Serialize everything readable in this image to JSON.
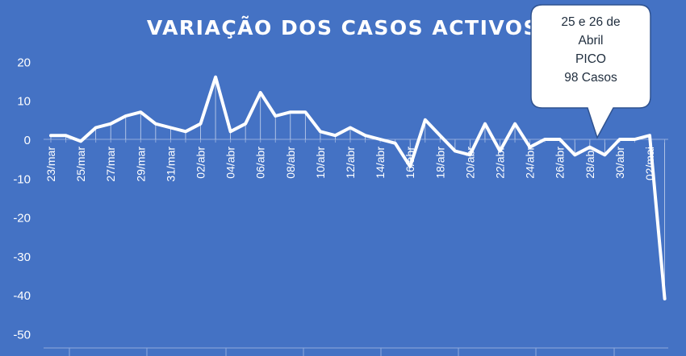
{
  "chart_data": {
    "type": "line",
    "title": "VARIAÇÃO DOS CASOS ACTIVOS",
    "xlabel": "",
    "ylabel": "",
    "ylim": [
      -50,
      20
    ],
    "yticks": [
      20,
      10,
      0,
      -10,
      -20,
      -30,
      -40,
      -50
    ],
    "grid": false,
    "legend": "none",
    "x_tick_labels": [
      "23/mar",
      "25/mar",
      "27/mar",
      "29/mar",
      "31/mar",
      "02/abr",
      "04/abr",
      "06/abr",
      "08/abr",
      "10/abr",
      "12/abr",
      "14/abr",
      "16/abr",
      "18/abr",
      "20/abr",
      "22/abr",
      "24/abr",
      "26/abr",
      "28/abr",
      "30/abr",
      "02/mai"
    ],
    "series": [
      {
        "values": [
          1,
          1,
          -0.5,
          3,
          4,
          6,
          7,
          4,
          3,
          2,
          4,
          16,
          2,
          4,
          12,
          6,
          7,
          7,
          2,
          1,
          3,
          1,
          0,
          -1,
          -7,
          5,
          1,
          -3,
          -4,
          4,
          -3,
          4,
          -2,
          0,
          0,
          -4,
          -2,
          -4,
          0,
          0,
          1,
          -41
        ]
      }
    ],
    "annotation": {
      "lines": [
        "25 e 26 de",
        "Abril",
        "PICO",
        "98 Casos"
      ]
    },
    "colors": {
      "background": "#4472c4",
      "line": "#ffffff",
      "callout_fill": "#ffffff",
      "callout_border": "#2f528f"
    }
  }
}
